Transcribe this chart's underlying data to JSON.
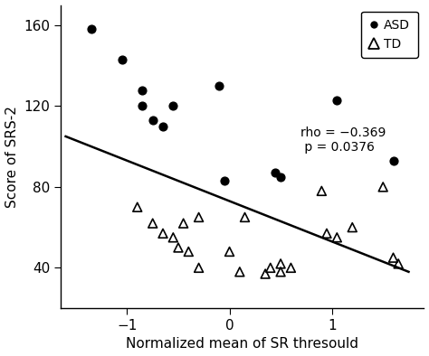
{
  "asd_x": [
    -1.35,
    -1.05,
    -0.85,
    -0.85,
    -0.75,
    -0.65,
    -0.55,
    -0.1,
    -0.05,
    0.45,
    0.5,
    1.05,
    1.6
  ],
  "asd_y": [
    158,
    143,
    128,
    120,
    113,
    110,
    120,
    130,
    83,
    87,
    85,
    123,
    93
  ],
  "td_x": [
    -0.9,
    -0.75,
    -0.65,
    -0.55,
    -0.5,
    -0.45,
    -0.4,
    -0.3,
    -0.3,
    0.0,
    0.1,
    0.15,
    0.35,
    0.4,
    0.5,
    0.5,
    0.6,
    0.9,
    0.95,
    1.05,
    1.2,
    1.5,
    1.6,
    1.65
  ],
  "td_y": [
    70,
    62,
    57,
    55,
    50,
    62,
    48,
    40,
    65,
    48,
    38,
    65,
    37,
    40,
    38,
    42,
    40,
    78,
    57,
    55,
    60,
    80,
    45,
    42
  ],
  "line_x": [
    -1.6,
    1.75
  ],
  "line_y": [
    105,
    38
  ],
  "xlabel": "Normalized mean of SR thresould",
  "ylabel": "Score of SRS-2",
  "xlim": [
    -1.65,
    1.9
  ],
  "ylim": [
    20,
    170
  ],
  "yticks": [
    40,
    80,
    120,
    160
  ],
  "xticks": [
    -1,
    0,
    1
  ],
  "annotation_line1": "rho = −0.369",
  "annotation_line2": " p = 0.0376",
  "legend_labels": [
    "ASD",
    "TD"
  ],
  "bg_color": "#ffffff",
  "line_color": "#000000",
  "marker_color": "#000000",
  "marker_size_asd": 40,
  "marker_size_td": 50,
  "fontsize_label": 11,
  "fontsize_tick": 11,
  "fontsize_legend": 10,
  "fontsize_annot": 10
}
